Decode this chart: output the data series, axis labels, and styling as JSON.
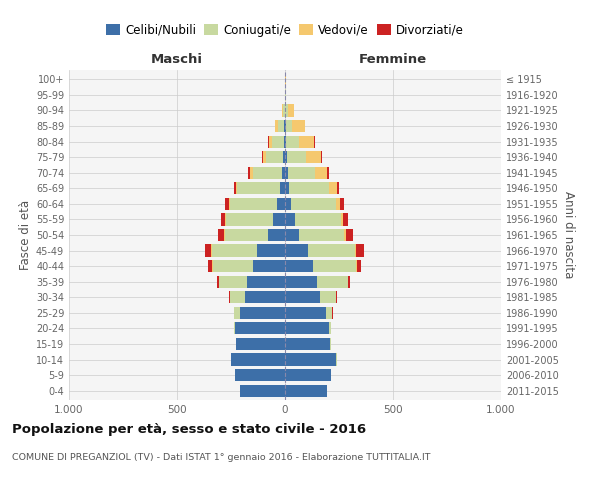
{
  "age_groups": [
    "0-4",
    "5-9",
    "10-14",
    "15-19",
    "20-24",
    "25-29",
    "30-34",
    "35-39",
    "40-44",
    "45-49",
    "50-54",
    "55-59",
    "60-64",
    "65-69",
    "70-74",
    "75-79",
    "80-84",
    "85-89",
    "90-94",
    "95-99",
    "100+"
  ],
  "birth_years": [
    "2011-2015",
    "2006-2010",
    "2001-2005",
    "1996-2000",
    "1991-1995",
    "1986-1990",
    "1981-1985",
    "1976-1980",
    "1971-1975",
    "1966-1970",
    "1961-1965",
    "1956-1960",
    "1951-1955",
    "1946-1950",
    "1941-1945",
    "1936-1940",
    "1931-1935",
    "1926-1930",
    "1921-1925",
    "1916-1920",
    "≤ 1915"
  ],
  "males_celibi": [
    210,
    230,
    250,
    225,
    230,
    210,
    185,
    175,
    150,
    130,
    80,
    55,
    35,
    25,
    15,
    8,
    5,
    4,
    2,
    1,
    0
  ],
  "males_coniugati": [
    0,
    0,
    1,
    1,
    5,
    25,
    70,
    130,
    185,
    210,
    200,
    218,
    220,
    195,
    135,
    80,
    55,
    28,
    5,
    1,
    1
  ],
  "males_vedovi": [
    0,
    0,
    0,
    0,
    0,
    0,
    0,
    1,
    1,
    1,
    2,
    3,
    5,
    8,
    14,
    16,
    16,
    14,
    6,
    0,
    0
  ],
  "males_divorziati": [
    0,
    0,
    0,
    0,
    0,
    1,
    4,
    8,
    20,
    28,
    28,
    20,
    16,
    8,
    5,
    3,
    2,
    1,
    0,
    0,
    0
  ],
  "fem_nubili": [
    195,
    215,
    238,
    210,
    205,
    190,
    160,
    150,
    130,
    105,
    65,
    48,
    28,
    20,
    12,
    7,
    5,
    5,
    2,
    1,
    1
  ],
  "fem_coniugate": [
    0,
    0,
    1,
    1,
    6,
    28,
    78,
    140,
    200,
    220,
    210,
    210,
    208,
    182,
    128,
    88,
    58,
    28,
    10,
    2,
    1
  ],
  "fem_vedove": [
    0,
    0,
    0,
    0,
    0,
    0,
    0,
    2,
    3,
    4,
    7,
    12,
    20,
    38,
    55,
    72,
    72,
    58,
    28,
    3,
    1
  ],
  "fem_divorziate": [
    0,
    0,
    0,
    0,
    1,
    2,
    4,
    9,
    20,
    38,
    32,
    22,
    18,
    12,
    7,
    4,
    3,
    2,
    0,
    0,
    0
  ],
  "colors_celibi": "#3d6fa8",
  "colors_coniugati": "#c8d9a0",
  "colors_vedovi": "#f5c86e",
  "colors_divorziati": "#cc2222",
  "legend_labels": [
    "Celibi/Nubili",
    "Coniugati/e",
    "Vedovi/e",
    "Divorziati/e"
  ],
  "title": "Popolazione per età, sesso e stato civile - 2016",
  "subtitle": "COMUNE DI PREGANZIOL (TV) - Dati ISTAT 1° gennaio 2016 - Elaborazione TUTTITALIA.IT",
  "label_maschi": "Maschi",
  "label_femmine": "Femmine",
  "ylabel_left": "Fasce di età",
  "ylabel_right": "Anni di nascita",
  "xlim": 1000
}
